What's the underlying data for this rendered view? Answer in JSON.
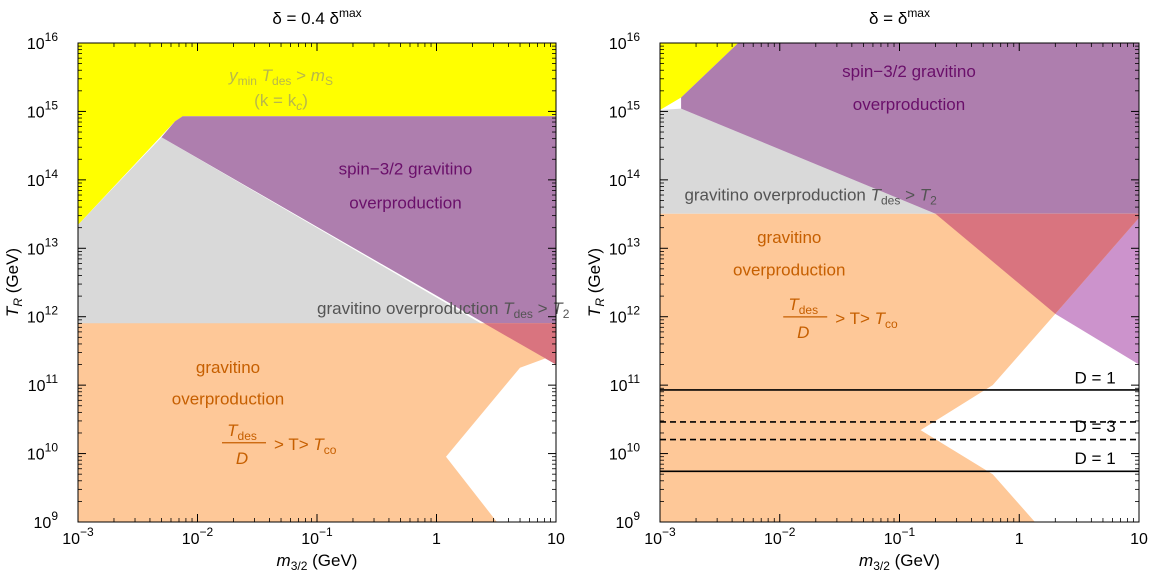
{
  "colors": {
    "yellow": "#ffff00",
    "purple": "#ae7eae",
    "purple_light": "#cc93cc",
    "gray": "#d9d9d9",
    "orange": "#fec898",
    "orange_red_overlap": "#d9747f",
    "orange_text": "#c65f00",
    "purple_text": "#6a0f6a",
    "gray_text": "#545454",
    "yellow_text": "#b8b84a"
  },
  "chart_data": [
    {
      "type": "area",
      "title": "δ = 0.4 δ",
      "title_sup": "max",
      "xlabel": "m",
      "xlabel_sub": "3/2",
      "xlabel_unit": " (GeV)",
      "ylabel": "T",
      "ylabel_sub": "R",
      "ylabel_unit": " (GeV)",
      "x_scale": "log",
      "y_scale": "log",
      "xlim": [
        0.001,
        10
      ],
      "ylim": [
        1000000000.0,
        1e+16
      ],
      "x_ticks": [
        {
          "value": 0.001,
          "base": "10",
          "exp": "−3"
        },
        {
          "value": 0.01,
          "base": "10",
          "exp": "−2"
        },
        {
          "value": 0.1,
          "base": "10",
          "exp": "−1"
        },
        {
          "value": 1,
          "base": "1",
          "exp": ""
        },
        {
          "value": 10,
          "base": "10",
          "exp": ""
        }
      ],
      "y_ticks": [
        {
          "value": 1000000000.0,
          "base": "10",
          "exp": "9"
        },
        {
          "value": 10000000000.0,
          "base": "10",
          "exp": "10"
        },
        {
          "value": 100000000000.0,
          "base": "10",
          "exp": "11"
        },
        {
          "value": 1000000000000.0,
          "base": "10",
          "exp": "12"
        },
        {
          "value": 10000000000000.0,
          "base": "10",
          "exp": "13"
        },
        {
          "value": 100000000000000.0,
          "base": "10",
          "exp": "14"
        },
        {
          "value": 1000000000000000.0,
          "base": "10",
          "exp": "15"
        },
        {
          "value": 1e+16,
          "base": "10",
          "exp": "16"
        }
      ],
      "regions": [
        {
          "name": "yellow",
          "color": "yellow",
          "points": [
            [
              0.001,
              1e+16
            ],
            [
              10,
              1e+16
            ],
            [
              10,
              850000000000000.0
            ],
            [
              0.0075,
              850000000000000.0
            ],
            [
              0.0065,
              720000000000000.0
            ],
            [
              0.001,
              22000000000000.0
            ]
          ]
        },
        {
          "name": "gray",
          "color": "gray",
          "points": [
            [
              0.001,
              22000000000000.0
            ],
            [
              0.005,
              420000000000000.0
            ],
            [
              2.5,
              750000000000.0
            ],
            [
              0.001,
              750000000000.0
            ]
          ]
        },
        {
          "name": "purple",
          "color": "purple",
          "points": [
            [
              0.0065,
              720000000000000.0
            ],
            [
              0.0075,
              850000000000000.0
            ],
            [
              10,
              850000000000000.0
            ],
            [
              10,
              200000000000.0
            ],
            [
              0.005,
              420000000000000.0
            ]
          ]
        },
        {
          "name": "orange",
          "color": "orange",
          "points": [
            [
              0.001,
              800000000000.0
            ],
            [
              10,
              800000000000.0
            ],
            [
              10,
              280000000000.0
            ],
            [
              5,
              180000000000.0
            ],
            [
              1.2,
              9000000000.0
            ],
            [
              3.2,
              1000000000.0
            ],
            [
              0.001,
              1000000000.0
            ]
          ]
        },
        {
          "name": "overlap",
          "color": "orange_red_overlap",
          "points": [
            [
              2.5,
              800000000000.0
            ],
            [
              10,
              800000000000.0
            ],
            [
              10,
              200000000000.0
            ]
          ]
        }
      ],
      "lines": [],
      "annotations": [
        {
          "text_main": "y",
          "text_sub": "min",
          "text_mid": " T",
          "text_sub2": "des",
          "text_end": " > m",
          "text_sub3": "S",
          "x": 0.05,
          "y": 2800000000000000.0,
          "color": "yellow_text"
        },
        {
          "text": "(k = k",
          "text_sub": "c",
          "text_end": ")",
          "x": 0.05,
          "y": 1200000000000000.0,
          "color": "yellow_text"
        },
        {
          "text": "spin−3/2 gravitino",
          "x": 0.55,
          "y": 120000000000000.0,
          "color": "purple_text"
        },
        {
          "text": "overproduction",
          "x": 0.55,
          "y": 38000000000000.0,
          "color": "purple_text"
        },
        {
          "text": "gravitino overproduction T",
          "text_sub": "des",
          "text_end": " > T",
          "text_sub2": "2",
          "x": 0.1,
          "y": 1100000000000.0,
          "color": "gray_text"
        },
        {
          "text": "gravitino",
          "x": 0.018,
          "y": 150000000000.0,
          "color": "orange_text"
        },
        {
          "text": "overproduction",
          "x": 0.018,
          "y": 52000000000.0,
          "color": "orange_text"
        },
        {
          "fraction_num": "T",
          "fraction_num_sub": "des",
          "fraction_den": "D",
          "text_end": "> T",
          "text_sub": "co",
          "x": 0.018,
          "y": 13000000000.0,
          "color": "orange_text"
        }
      ]
    },
    {
      "type": "area",
      "title": "δ = δ",
      "title_sup": "max",
      "xlabel": "m",
      "xlabel_sub": "3/2",
      "xlabel_unit": " (GeV)",
      "ylabel": "T",
      "ylabel_sub": "R",
      "ylabel_unit": " (GeV)",
      "x_scale": "log",
      "y_scale": "log",
      "xlim": [
        0.001,
        10
      ],
      "ylim": [
        1000000000.0,
        1e+16
      ],
      "x_ticks": [
        {
          "value": 0.001,
          "base": "10",
          "exp": "−3"
        },
        {
          "value": 0.01,
          "base": "10",
          "exp": "−2"
        },
        {
          "value": 0.1,
          "base": "10",
          "exp": "−1"
        },
        {
          "value": 1,
          "base": "1",
          "exp": ""
        },
        {
          "value": 10,
          "base": "10",
          "exp": ""
        }
      ],
      "y_ticks": [
        {
          "value": 1000000000.0,
          "base": "10",
          "exp": "9"
        },
        {
          "value": 10000000000.0,
          "base": "10",
          "exp": "10"
        },
        {
          "value": 100000000000.0,
          "base": "10",
          "exp": "11"
        },
        {
          "value": 1000000000000.0,
          "base": "10",
          "exp": "12"
        },
        {
          "value": 10000000000000.0,
          "base": "10",
          "exp": "13"
        },
        {
          "value": 100000000000000.0,
          "base": "10",
          "exp": "14"
        },
        {
          "value": 1000000000000000.0,
          "base": "10",
          "exp": "15"
        },
        {
          "value": 1e+16,
          "base": "10",
          "exp": "16"
        }
      ],
      "regions": [
        {
          "name": "yellow",
          "color": "yellow",
          "points": [
            [
              0.001,
              1e+16
            ],
            [
              0.0045,
              1e+16
            ],
            [
              0.0015,
              1600000000000000.0
            ],
            [
              0.001,
              1050000000000000.0
            ]
          ]
        },
        {
          "name": "gray",
          "color": "gray",
          "points": [
            [
              0.001,
              1050000000000000.0
            ],
            [
              0.0015,
              1100000000000000.0
            ],
            [
              0.2,
              32000000000000.0
            ],
            [
              0.001,
              32000000000000.0
            ]
          ]
        },
        {
          "name": "purple",
          "color": "purple",
          "points": [
            [
              0.0045,
              1e+16
            ],
            [
              10,
              1e+16
            ],
            [
              10,
              32000000000000.0
            ],
            [
              0.2,
              32000000000000.0
            ],
            [
              0.0015,
              1100000000000000.0
            ],
            [
              0.0015,
              1600000000000000.0
            ]
          ]
        },
        {
          "name": "purple_light",
          "color": "purple_light",
          "points": [
            [
              10,
              30000000000000.0
            ],
            [
              10,
              200000000000.0
            ],
            [
              2,
              1100000000000.0
            ]
          ]
        },
        {
          "name": "orange",
          "color": "orange",
          "points": [
            [
              0.001,
              32000000000000.0
            ],
            [
              10,
              32000000000000.0
            ],
            [
              10,
              28000000000000.0
            ],
            [
              2,
              1100000000000.0
            ],
            [
              0.6,
              100000000000.0
            ],
            [
              0.15,
              22000000000.0
            ],
            [
              0.6,
              5000000000.0
            ],
            [
              1.35,
              1000000000.0
            ],
            [
              0.001,
              1000000000.0
            ]
          ]
        },
        {
          "name": "overlap",
          "color": "orange_red_overlap",
          "points": [
            [
              0.2,
              32000000000000.0
            ],
            [
              10,
              32000000000000.0
            ],
            [
              10,
              28000000000000.0
            ],
            [
              2,
              1100000000000.0
            ]
          ]
        }
      ],
      "lines": [
        {
          "y": 85000000000.0,
          "style": "solid"
        },
        {
          "y": 29000000000.0,
          "style": "dashed"
        },
        {
          "y": 16000000000.0,
          "style": "dashed"
        },
        {
          "y": 5500000000.0,
          "style": "solid"
        }
      ],
      "annotations": [
        {
          "text": "spin−3/2 gravitino",
          "x": 0.12,
          "y": 3200000000000000.0,
          "color": "purple_text"
        },
        {
          "text": "overproduction",
          "x": 0.12,
          "y": 1050000000000000.0,
          "color": "purple_text"
        },
        {
          "text": "gravitino overproduction T",
          "text_sub": "des",
          "text_end": " > T",
          "text_sub2": "2",
          "x": 0.0016,
          "y": 50000000000000.0,
          "color": "gray_text"
        },
        {
          "text": "gravitino",
          "x": 0.012,
          "y": 12000000000000.0,
          "color": "orange_text"
        },
        {
          "text": "overproduction",
          "x": 0.012,
          "y": 4000000000000.0,
          "color": "orange_text"
        },
        {
          "fraction_num": "T",
          "fraction_num_sub": "des",
          "fraction_den": "D",
          "text_end": "> T",
          "text_sub": "co",
          "x": 0.012,
          "y": 900000000000.0,
          "color": "orange_text"
        },
        {
          "text": "D = 1",
          "x": 4.3,
          "y": 105000000000.0,
          "color": "black"
        },
        {
          "text": "D = 3",
          "x": 4.3,
          "y": 20500000000.0,
          "color": "black"
        },
        {
          "text": "D = 1",
          "x": 4.3,
          "y": 7000000000.0,
          "color": "black"
        }
      ]
    }
  ]
}
